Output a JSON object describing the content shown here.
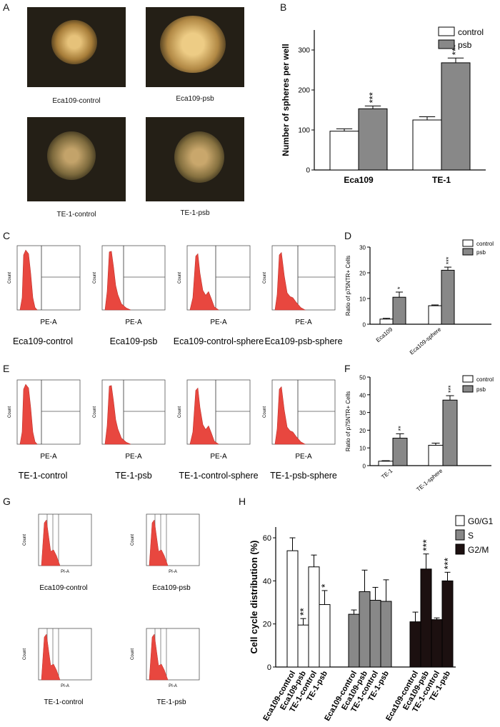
{
  "panel_letters": {
    "A": "A",
    "B": "B",
    "C": "C",
    "D": "D",
    "E": "E",
    "F": "F",
    "G": "G",
    "H": "H"
  },
  "panel_a": {
    "captions": [
      "Eca109-control",
      "Eca109-psb",
      "TE-1-control",
      "TE-1-psb"
    ]
  },
  "panel_c": {
    "captions": [
      "Eca109-control",
      "Eca109-psb",
      "Eca109-control-sphere",
      "Eca109-psb-sphere"
    ],
    "xaxis_label": "PE-A",
    "yaxis_label": "Count"
  },
  "panel_e": {
    "captions": [
      "TE-1-control",
      "TE-1-psb",
      "TE-1-control-sphere",
      "TE-1-psb-sphere"
    ],
    "xaxis_label": "PE-A",
    "yaxis_label": "Count"
  },
  "panel_g": {
    "captions": [
      "Eca109-control",
      "Eca109-psb",
      "TE-1-control",
      "TE-1-psb"
    ],
    "xaxis_label": "PI-A",
    "yaxis_label": "Count"
  },
  "colors": {
    "control": "#ffffff",
    "psb": "#888888",
    "g2m": "#1c1010",
    "flow": "#e8473f"
  },
  "chart_data": [
    {
      "panel": "B",
      "type": "bar",
      "categories": [
        "Eca109",
        "TE-1"
      ],
      "series": [
        {
          "name": "control",
          "values": [
            97,
            125
          ],
          "errors": [
            6,
            8
          ]
        },
        {
          "name": "psb",
          "values": [
            153,
            268
          ],
          "errors": [
            7,
            12
          ]
        }
      ],
      "annotations": [
        "***",
        "***"
      ],
      "ylabel": "Number of spheres per well",
      "ylim": [
        0,
        350
      ],
      "yticks": [
        0,
        100,
        200,
        300
      ],
      "legend": "top-right"
    },
    {
      "panel": "D",
      "type": "bar",
      "categories": [
        "Eca109",
        "Eca109-sphere"
      ],
      "series": [
        {
          "name": "control",
          "values": [
            2,
            7.2
          ],
          "errors": [
            0.3,
            0.3
          ]
        },
        {
          "name": "psb",
          "values": [
            10.5,
            21
          ],
          "errors": [
            2,
            1.2
          ]
        }
      ],
      "annotations": [
        "*",
        "***"
      ],
      "ylabel": "Ratio of p75NTR+ Cells",
      "ylim": [
        0,
        30
      ],
      "yticks": [
        0,
        10,
        20,
        30
      ],
      "legend": "top-right"
    },
    {
      "panel": "F",
      "type": "bar",
      "categories": [
        "TE-1",
        "TE-1-sphere"
      ],
      "series": [
        {
          "name": "control",
          "values": [
            2.5,
            11.5
          ],
          "errors": [
            0.3,
            1.2
          ]
        },
        {
          "name": "psb",
          "values": [
            15.5,
            37
          ],
          "errors": [
            2.5,
            2.5
          ]
        }
      ],
      "annotations": [
        "**",
        "***"
      ],
      "ylabel": "Ratio of p75NTR+ Cells",
      "ylim": [
        0,
        50
      ],
      "yticks": [
        0,
        10,
        20,
        30,
        40,
        50
      ],
      "legend": "top-right"
    },
    {
      "panel": "H",
      "type": "bar",
      "categories": [
        "Eca109-control",
        "Eca109-psb",
        "TE-1-control",
        "TE-1-psb"
      ],
      "series": [
        {
          "name": "G0/G1",
          "values": [
            54,
            19.5,
            46.5,
            29
          ],
          "errors": [
            6,
            3,
            5.5,
            6.5
          ],
          "annotations": [
            "",
            "**",
            "",
            "*"
          ]
        },
        {
          "name": "S",
          "values": [
            24.5,
            35,
            31,
            30.5
          ],
          "errors": [
            2,
            10,
            6,
            10
          ],
          "annotations": [
            "",
            "",
            "",
            ""
          ]
        },
        {
          "name": "G2/M",
          "values": [
            21,
            45.5,
            22,
            40
          ],
          "errors": [
            4.5,
            7,
            0.8,
            4
          ],
          "annotations": [
            "",
            "***",
            "",
            "***"
          ]
        }
      ],
      "ylabel": "Cell cycle distribution (%)",
      "ylim": [
        0,
        65
      ],
      "yticks": [
        0,
        20,
        40,
        60
      ],
      "legend": "top-right"
    }
  ]
}
